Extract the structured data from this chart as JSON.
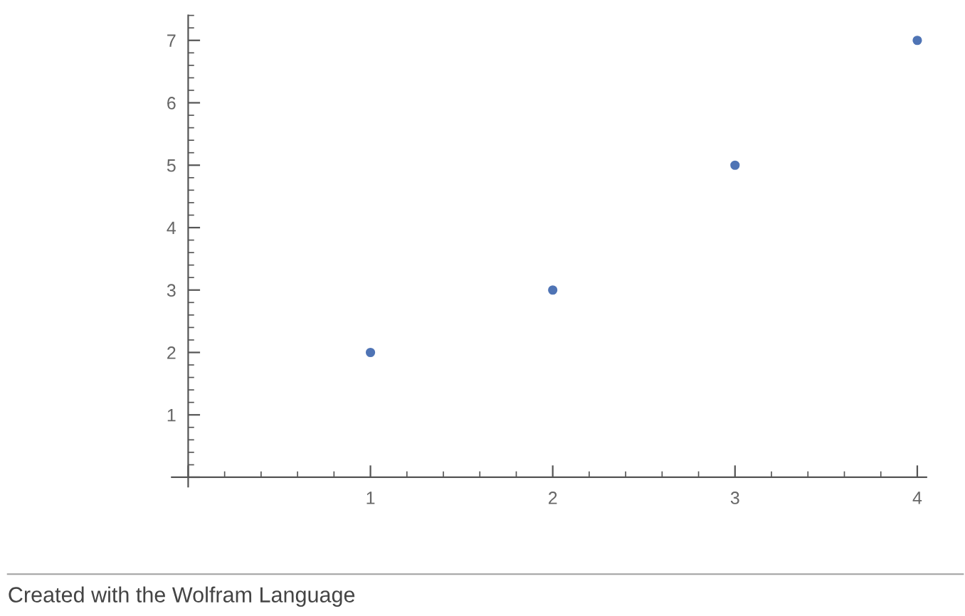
{
  "chart_data": {
    "type": "scatter",
    "x": [
      1,
      2,
      3,
      4
    ],
    "series": [
      {
        "color": "#4f74b5",
        "values": [
          2,
          3,
          5,
          7
        ]
      }
    ],
    "xlim": [
      -0.09,
      4.05
    ],
    "ylim": [
      -0.15,
      7.4
    ],
    "xticks": [
      {
        "value": 0,
        "label": null
      },
      1,
      2,
      3,
      4
    ],
    "yticks": [
      {
        "value": 0,
        "label": null
      },
      1,
      2,
      3,
      4,
      5,
      6,
      7
    ],
    "marker": "circle",
    "grid": false,
    "legend": false,
    "annotations": [
      "Created with the Wolfram Language"
    ]
  }
}
